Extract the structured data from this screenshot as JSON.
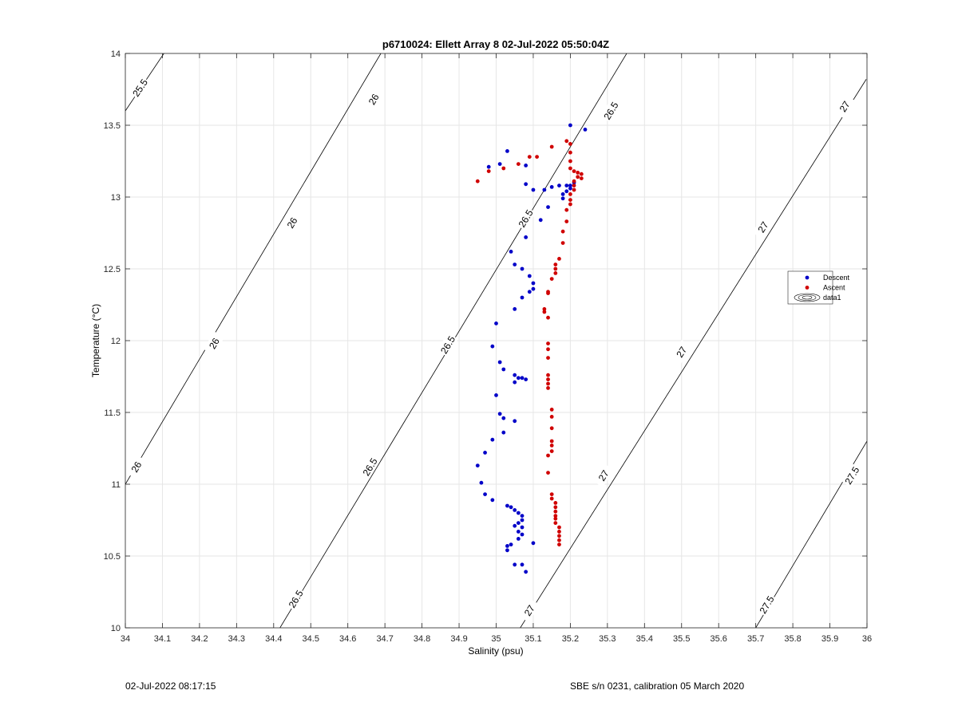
{
  "chart_data": {
    "type": "scatter",
    "title": "p6710024: Ellett Array 8 02-Jul-2022 05:50:04Z",
    "xlabel": "Salinity (psu)",
    "ylabel": "Temperature (°C)",
    "xlim": [
      34,
      36
    ],
    "ylim": [
      10,
      14
    ],
    "xticks": [
      34,
      34.1,
      34.2,
      34.3,
      34.4,
      34.5,
      34.6,
      34.7,
      34.8,
      34.9,
      35,
      35.1,
      35.2,
      35.3,
      35.4,
      35.5,
      35.6,
      35.7,
      35.8,
      35.9,
      36
    ],
    "xtick_labels": [
      "34",
      "34.1",
      "34.2",
      "34.3",
      "34.4",
      "34.5",
      "34.6",
      "34.7",
      "34.8",
      "34.9",
      "35",
      "35.1",
      "35.2",
      "35.3",
      "35.4",
      "35.5",
      "35.6",
      "35.7",
      "35.8",
      "35.9",
      "36"
    ],
    "yticks": [
      10,
      10.5,
      11,
      11.5,
      12,
      12.5,
      13,
      13.5,
      14
    ],
    "ytick_labels": [
      "10",
      "10.5",
      "11",
      "11.5",
      "12",
      "12.5",
      "13",
      "13.5",
      "14"
    ],
    "grid": true,
    "legend_position": "right",
    "legend": [
      {
        "label": "Descent",
        "marker": "dot",
        "color": "#0000c8"
      },
      {
        "label": "Ascent",
        "marker": "dot",
        "color": "#d00000"
      },
      {
        "label": "data1",
        "marker": "contour",
        "color": "#000000"
      }
    ],
    "contours": [
      {
        "label": "25.5",
        "points": [
          [
            34,
            13.6
          ],
          [
            34.104,
            14
          ]
        ],
        "label_positions": [
          [
            34.04,
            13.76
          ]
        ]
      },
      {
        "label": "26",
        "points": [
          [
            34,
            11.0
          ],
          [
            34.689,
            14
          ]
        ],
        "label_positions": [
          [
            34.03,
            11.12
          ],
          [
            34.24,
            11.98
          ],
          [
            34.45,
            12.82
          ],
          [
            34.67,
            13.68
          ]
        ]
      },
      {
        "label": "26.5",
        "points": [
          [
            34.417,
            10
          ],
          [
            35.352,
            14
          ]
        ],
        "label_positions": [
          [
            34.46,
            10.2
          ],
          [
            34.66,
            11.12
          ],
          [
            34.87,
            11.97
          ],
          [
            35.08,
            12.85
          ],
          [
            35.31,
            13.6
          ]
        ]
      },
      {
        "label": "27",
        "points": [
          [
            35.065,
            10
          ],
          [
            35.998,
            13.82
          ]
        ],
        "label_positions": [
          [
            35.09,
            10.12
          ],
          [
            35.29,
            11.06
          ],
          [
            35.5,
            11.92
          ],
          [
            35.72,
            12.79
          ],
          [
            35.94,
            13.63
          ]
        ]
      },
      {
        "label": "27.5",
        "points": [
          [
            35.7,
            10
          ],
          [
            36,
            11.3
          ]
        ],
        "label_positions": [
          [
            35.73,
            10.16
          ],
          [
            35.96,
            11.06
          ]
        ]
      }
    ],
    "series": [
      {
        "name": "Descent",
        "color": "#0000c8",
        "points": [
          [
            35.2,
            13.5
          ],
          [
            35.24,
            13.47
          ],
          [
            35.03,
            13.32
          ],
          [
            34.98,
            13.21
          ],
          [
            35.01,
            13.23
          ],
          [
            35.08,
            13.22
          ],
          [
            35.08,
            13.09
          ],
          [
            35.1,
            13.05
          ],
          [
            35.13,
            13.05
          ],
          [
            35.15,
            13.07
          ],
          [
            35.17,
            13.08
          ],
          [
            35.19,
            13.08
          ],
          [
            35.2,
            13.08
          ],
          [
            35.21,
            13.1
          ],
          [
            35.2,
            13.06
          ],
          [
            35.19,
            13.04
          ],
          [
            35.18,
            13.02
          ],
          [
            35.18,
            12.99
          ],
          [
            35.14,
            12.93
          ],
          [
            35.12,
            12.84
          ],
          [
            35.08,
            12.72
          ],
          [
            35.04,
            12.62
          ],
          [
            35.05,
            12.53
          ],
          [
            35.07,
            12.5
          ],
          [
            35.09,
            12.45
          ],
          [
            35.1,
            12.4
          ],
          [
            35.1,
            12.36
          ],
          [
            35.09,
            12.34
          ],
          [
            35.07,
            12.3
          ],
          [
            35.05,
            12.22
          ],
          [
            35,
            12.12
          ],
          [
            34.99,
            11.96
          ],
          [
            35.01,
            11.85
          ],
          [
            35.02,
            11.8
          ],
          [
            35.05,
            11.76
          ],
          [
            35.06,
            11.74
          ],
          [
            35.07,
            11.74
          ],
          [
            35.08,
            11.73
          ],
          [
            35.05,
            11.71
          ],
          [
            35,
            11.62
          ],
          [
            35.01,
            11.49
          ],
          [
            35.02,
            11.46
          ],
          [
            35.05,
            11.44
          ],
          [
            35.02,
            11.36
          ],
          [
            34.99,
            11.31
          ],
          [
            34.97,
            11.22
          ],
          [
            34.95,
            11.13
          ],
          [
            34.96,
            11.01
          ],
          [
            34.97,
            10.93
          ],
          [
            34.99,
            10.89
          ],
          [
            35.03,
            10.85
          ],
          [
            35.04,
            10.84
          ],
          [
            35.05,
            10.82
          ],
          [
            35.06,
            10.8
          ],
          [
            35.07,
            10.78
          ],
          [
            35.07,
            10.75
          ],
          [
            35.06,
            10.73
          ],
          [
            35.05,
            10.71
          ],
          [
            35.07,
            10.7
          ],
          [
            35.06,
            10.67
          ],
          [
            35.07,
            10.65
          ],
          [
            35.06,
            10.62
          ],
          [
            35.04,
            10.58
          ],
          [
            35.03,
            10.57
          ],
          [
            35.03,
            10.54
          ],
          [
            35.1,
            10.59
          ],
          [
            35.05,
            10.44
          ],
          [
            35.07,
            10.44
          ],
          [
            35.08,
            10.39
          ]
        ]
      },
      {
        "name": "Ascent",
        "color": "#d00000",
        "points": [
          [
            34.95,
            13.11
          ],
          [
            34.98,
            13.18
          ],
          [
            35.02,
            13.2
          ],
          [
            35.06,
            13.23
          ],
          [
            35.09,
            13.28
          ],
          [
            35.11,
            13.28
          ],
          [
            35.15,
            13.35
          ],
          [
            35.19,
            13.39
          ],
          [
            35.2,
            13.37
          ],
          [
            35.2,
            13.31
          ],
          [
            35.2,
            13.25
          ],
          [
            35.2,
            13.2
          ],
          [
            35.21,
            13.18
          ],
          [
            35.22,
            13.17
          ],
          [
            35.23,
            13.16
          ],
          [
            35.22,
            13.14
          ],
          [
            35.23,
            13.13
          ],
          [
            35.21,
            13.11
          ],
          [
            35.21,
            13.08
          ],
          [
            35.21,
            13.05
          ],
          [
            35.2,
            13.02
          ],
          [
            35.2,
            12.98
          ],
          [
            35.2,
            12.95
          ],
          [
            35.19,
            12.91
          ],
          [
            35.19,
            12.83
          ],
          [
            35.18,
            12.76
          ],
          [
            35.18,
            12.68
          ],
          [
            35.17,
            12.57
          ],
          [
            35.16,
            12.53
          ],
          [
            35.16,
            12.5
          ],
          [
            35.16,
            12.47
          ],
          [
            35.15,
            12.43
          ],
          [
            35.14,
            12.34
          ],
          [
            35.14,
            12.33
          ],
          [
            35.13,
            12.22
          ],
          [
            35.13,
            12.2
          ],
          [
            35.14,
            12.16
          ],
          [
            35.14,
            11.98
          ],
          [
            35.14,
            11.94
          ],
          [
            35.14,
            11.88
          ],
          [
            35.14,
            11.76
          ],
          [
            35.14,
            11.73
          ],
          [
            35.14,
            11.7
          ],
          [
            35.14,
            11.67
          ],
          [
            35.15,
            11.52
          ],
          [
            35.15,
            11.47
          ],
          [
            35.15,
            11.39
          ],
          [
            35.15,
            11.3
          ],
          [
            35.15,
            11.27
          ],
          [
            35.15,
            11.23
          ],
          [
            35.14,
            11.2
          ],
          [
            35.14,
            11.08
          ],
          [
            35.15,
            10.93
          ],
          [
            35.15,
            10.9
          ],
          [
            35.16,
            10.87
          ],
          [
            35.16,
            10.84
          ],
          [
            35.16,
            10.81
          ],
          [
            35.16,
            10.78
          ],
          [
            35.16,
            10.76
          ],
          [
            35.16,
            10.73
          ],
          [
            35.17,
            10.7
          ],
          [
            35.17,
            10.67
          ],
          [
            35.17,
            10.64
          ],
          [
            35.17,
            10.61
          ],
          [
            35.17,
            10.58
          ]
        ]
      }
    ]
  },
  "footer": {
    "left": "02-Jul-2022 08:17:15",
    "right": "SBE s/n 0231, calibration 05 March 2020"
  }
}
